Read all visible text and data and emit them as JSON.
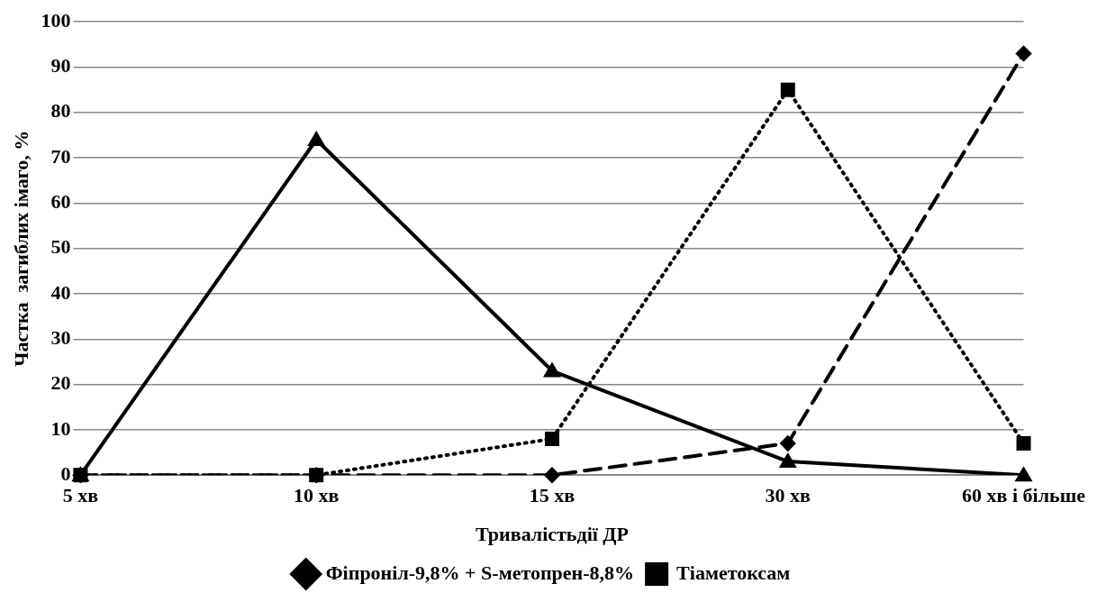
{
  "chart_data": {
    "type": "line",
    "xlabel": "Тривалістьдії ДР",
    "ylabel": "Частка  загиблих імаго, %",
    "categories": [
      "5 хв",
      "10 хв",
      "15 хв",
      "30 хв",
      "60 хв і більше"
    ],
    "series": [
      {
        "name": "Фіпроніл-9,8% + S-метопрен-8,8%",
        "color": "#000000",
        "values": [
          0,
          0,
          0,
          7,
          93
        ],
        "line_style": "dashed",
        "marker": "diamond"
      },
      {
        "name": "Тіаметоксам",
        "color": "#000000",
        "values": [
          0,
          0,
          8,
          85,
          7
        ],
        "line_style": "dotted",
        "marker": "square"
      },
      {
        "color": "#000000",
        "values": [
          0,
          74,
          23,
          3,
          0
        ],
        "line_style": "solid",
        "marker": "triangle"
      }
    ],
    "ylim": [
      0,
      100
    ],
    "yticks": [
      0,
      10,
      20,
      30,
      40,
      50,
      60,
      70,
      80,
      90,
      100
    ],
    "grid": "y",
    "legend": "bottom"
  }
}
